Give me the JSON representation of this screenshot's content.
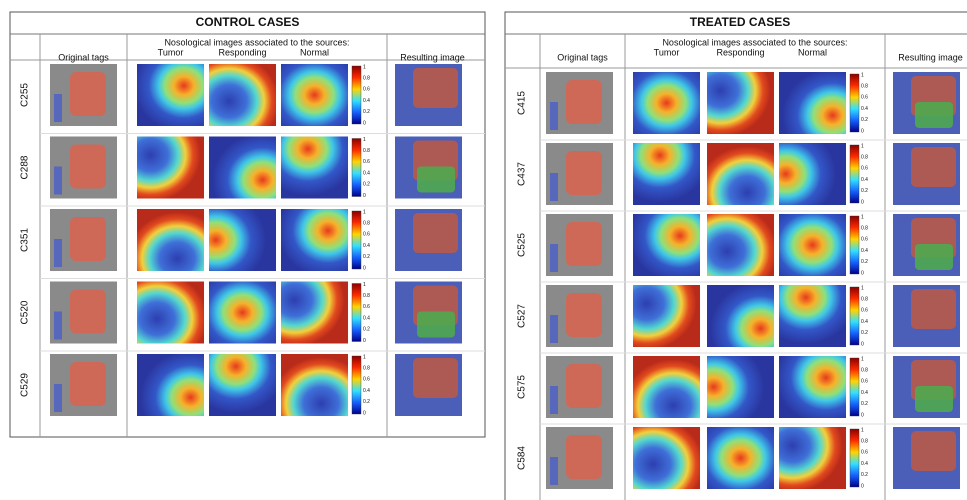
{
  "panels": [
    {
      "title": "CONTROL CASES",
      "headers": {
        "original": "Original tags",
        "nosological": "Nosological images associated to the sources:",
        "tumor": "Tumor",
        "responding": "Responding",
        "normal": "Normal",
        "result": "Resulting image"
      },
      "rows": [
        "C255",
        "C288",
        "C351",
        "C520",
        "C529"
      ]
    },
    {
      "title": "TREATED CASES",
      "headers": {
        "original": "Original tags",
        "nosological": "Nosological images associated to the sources:",
        "tumor": "Tumor",
        "responding": "Responding",
        "normal": "Normal",
        "result": "Resulting image"
      },
      "rows": [
        "C415",
        "C437",
        "C525",
        "C527",
        "C575",
        "C584"
      ]
    }
  ],
  "colorbar_ticks": [
    "1",
    "0.8",
    "0.6",
    "0.4",
    "0.2",
    "0"
  ]
}
